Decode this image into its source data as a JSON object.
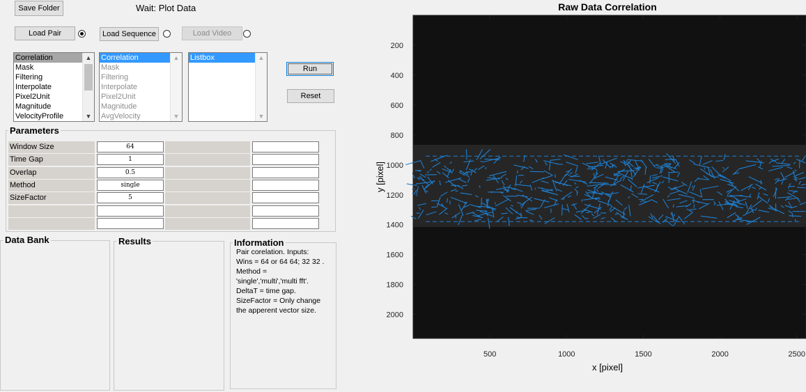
{
  "toolbar": {
    "save_folder": "Save Folder",
    "status": "Wait:  Plot Data",
    "load_pair": "Load Pair",
    "load_sequence": "Load Sequence",
    "load_video": "Load Video",
    "run": "Run",
    "reset": "Reset"
  },
  "lists": {
    "methods": [
      "Correlation",
      "Mask",
      "Filtering",
      "Interpolate",
      "Pixel2Unit",
      "Magnitude",
      "VelocityProfile"
    ],
    "queue": [
      "Correlation",
      "Mask",
      "Filtering",
      "Interpolate",
      "Pixel2Unit",
      "Magnitude",
      "AvgVelocity"
    ],
    "listbox": [
      "Listbox"
    ]
  },
  "parameters": {
    "title": "Parameters",
    "rows": [
      {
        "label": "Window Size",
        "value": "64"
      },
      {
        "label": "Time Gap",
        "value": "1"
      },
      {
        "label": "Overlap",
        "value": "0.5"
      },
      {
        "label": "Method",
        "value": "single"
      },
      {
        "label": "SizeFactor",
        "value": "5"
      },
      {
        "label": "",
        "value": ""
      },
      {
        "label": "",
        "value": ""
      }
    ]
  },
  "panels": {
    "data_bank": "Data Bank",
    "results": "Results",
    "information": "Information",
    "info_lines": [
      "Pair corelation. Inputs:",
      "Wins = 64 or 64 64; 32 32 .",
      "Method =",
      "'single','multi','multi fft'.",
      "DeltaT = time gap.",
      "SizeFactor = Only change",
      "the apperent vector size."
    ]
  },
  "chart_data": {
    "type": "image",
    "title": "Raw Data Correlation",
    "xlabel": "x [pixel]",
    "ylabel": "y [pixel]",
    "xlim": [
      0,
      2560
    ],
    "ylim": [
      2160,
      0
    ],
    "xticks": [
      500,
      1000,
      1500,
      2000,
      2500
    ],
    "yticks": [
      200,
      400,
      600,
      800,
      1000,
      1200,
      1400,
      1600,
      1800,
      2000
    ],
    "overlay": {
      "type": "quiver",
      "color": "#1e7fd1",
      "x_range": [
        10,
        2550
      ],
      "y_range": [
        960,
        1370
      ]
    },
    "colors": {
      "background": "#111111",
      "band": "#2a2a2a"
    }
  }
}
